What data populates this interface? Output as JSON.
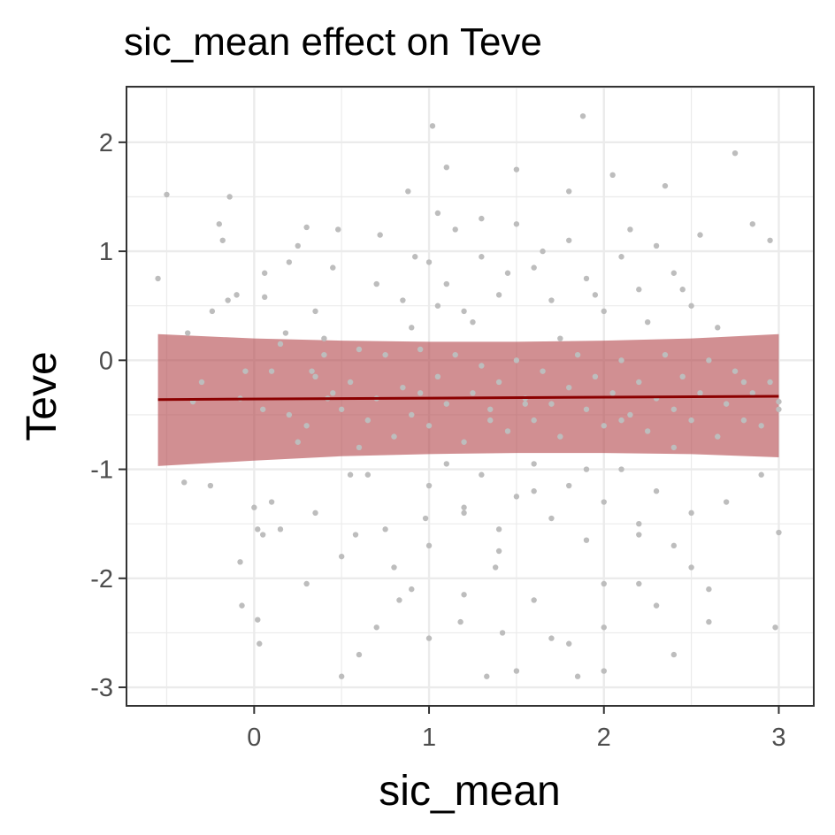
{
  "chart_data": {
    "type": "scatter",
    "title": "sic_mean effect on Teve",
    "xlabel": "sic_mean",
    "ylabel": "Teve",
    "xlim": [
      -0.73,
      3.2
    ],
    "ylim": [
      -3.17,
      2.51
    ],
    "x_ticks": [
      0,
      1,
      2,
      3
    ],
    "x_tick_labels": [
      "0",
      "1",
      "2",
      "3"
    ],
    "y_ticks": [
      -3,
      -2,
      -1,
      0,
      1,
      2
    ],
    "y_tick_labels": [
      "-3",
      "-2",
      "-1",
      "0",
      "1",
      "2"
    ],
    "grid": true,
    "colors": {
      "points": "#bdbdbd",
      "line": "#8b0000",
      "ribbon": "#b3454a",
      "grid": "#ebebeb",
      "panel_border": "#333333"
    },
    "series": [
      {
        "type": "line",
        "x": [
          -0.55,
          3.0
        ],
        "y": [
          -0.36,
          -0.33
        ]
      },
      {
        "type": "ribbon",
        "x": [
          -0.55,
          0.0,
          0.5,
          1.0,
          1.5,
          2.0,
          2.5,
          3.0
        ],
        "y_low": [
          -0.97,
          -0.92,
          -0.88,
          -0.86,
          -0.85,
          -0.85,
          -0.86,
          -0.89
        ],
        "y_high": [
          0.24,
          0.2,
          0.18,
          0.17,
          0.17,
          0.18,
          0.2,
          0.24
        ]
      },
      {
        "type": "scatter",
        "points": [
          [
            -0.55,
            0.75
          ],
          [
            -0.5,
            1.52
          ],
          [
            -0.4,
            -1.12
          ],
          [
            -0.38,
            0.25
          ],
          [
            -0.35,
            -0.38
          ],
          [
            -0.3,
            -0.2
          ],
          [
            -0.25,
            -1.15
          ],
          [
            -0.24,
            0.45
          ],
          [
            -0.2,
            1.25
          ],
          [
            -0.18,
            1.1
          ],
          [
            -0.15,
            0.55
          ],
          [
            -0.14,
            1.5
          ],
          [
            -0.1,
            0.6
          ],
          [
            -0.08,
            -0.35
          ],
          [
            -0.05,
            -0.1
          ],
          [
            -0.08,
            -1.85
          ],
          [
            -0.07,
            -2.25
          ],
          [
            0.0,
            -1.35
          ],
          [
            0.02,
            -1.55
          ],
          [
            0.05,
            -1.6
          ],
          [
            0.03,
            -2.6
          ],
          [
            0.02,
            -2.38
          ],
          [
            0.06,
            0.8
          ],
          [
            0.06,
            0.58
          ],
          [
            0.1,
            -1.3
          ],
          [
            0.15,
            -1.55
          ],
          [
            0.18,
            0.25
          ],
          [
            0.2,
            0.9
          ],
          [
            0.25,
            1.05
          ],
          [
            0.3,
            1.22
          ],
          [
            0.33,
            -0.1
          ],
          [
            0.35,
            0.45
          ],
          [
            0.4,
            0.2
          ],
          [
            0.42,
            -0.35
          ],
          [
            0.45,
            0.85
          ],
          [
            0.48,
            1.2
          ],
          [
            0.5,
            -1.8
          ],
          [
            0.55,
            -1.05
          ],
          [
            0.58,
            -1.6
          ],
          [
            0.6,
            -0.8
          ],
          [
            0.65,
            -1.05
          ],
          [
            0.7,
            0.7
          ],
          [
            0.72,
            1.15
          ],
          [
            0.75,
            -1.55
          ],
          [
            0.8,
            -1.9
          ],
          [
            0.83,
            -2.2
          ],
          [
            0.85,
            0.55
          ],
          [
            0.88,
            1.55
          ],
          [
            0.9,
            0.3
          ],
          [
            0.92,
            0.95
          ],
          [
            0.95,
            -0.3
          ],
          [
            0.98,
            -1.45
          ],
          [
            1.0,
            -1.7
          ],
          [
            1.02,
            2.15
          ],
          [
            1.05,
            0.5
          ],
          [
            1.1,
            1.77
          ],
          [
            1.15,
            1.2
          ],
          [
            1.18,
            -2.4
          ],
          [
            1.2,
            -1.4
          ],
          [
            1.25,
            0.35
          ],
          [
            1.3,
            1.3
          ],
          [
            1.33,
            -2.9
          ],
          [
            1.35,
            -0.55
          ],
          [
            1.38,
            -1.9
          ],
          [
            1.42,
            -2.5
          ],
          [
            1.45,
            0.8
          ],
          [
            1.5,
            1.75
          ],
          [
            1.55,
            -0.4
          ],
          [
            1.6,
            -1.2
          ],
          [
            1.65,
            1.0
          ],
          [
            1.7,
            -2.55
          ],
          [
            1.75,
            0.2
          ],
          [
            1.8,
            1.55
          ],
          [
            1.85,
            -2.9
          ],
          [
            1.88,
            2.24
          ],
          [
            1.9,
            -1.0
          ],
          [
            1.95,
            0.6
          ],
          [
            2.0,
            -2.05
          ],
          [
            2.05,
            1.7
          ],
          [
            2.1,
            -0.55
          ],
          [
            2.15,
            1.2
          ],
          [
            2.2,
            -1.6
          ],
          [
            2.25,
            0.35
          ],
          [
            2.3,
            -2.25
          ],
          [
            2.35,
            1.6
          ],
          [
            2.4,
            -0.8
          ],
          [
            2.45,
            0.65
          ],
          [
            2.5,
            -1.9
          ],
          [
            2.55,
            1.15
          ],
          [
            2.6,
            -2.4
          ],
          [
            2.65,
            0.3
          ],
          [
            2.7,
            -1.3
          ],
          [
            2.75,
            1.9
          ],
          [
            2.8,
            -0.2
          ],
          [
            2.85,
            1.25
          ],
          [
            2.9,
            -1.05
          ],
          [
            2.95,
            1.1
          ],
          [
            3.0,
            -1.58
          ],
          [
            3.0,
            -0.45
          ],
          [
            2.98,
            -2.45
          ],
          [
            0.2,
            -0.5
          ],
          [
            0.25,
            -0.75
          ],
          [
            0.3,
            -0.6
          ],
          [
            0.35,
            -0.15
          ],
          [
            0.4,
            0.05
          ],
          [
            0.45,
            -0.3
          ],
          [
            0.5,
            -0.45
          ],
          [
            0.55,
            -0.2
          ],
          [
            0.6,
            0.1
          ],
          [
            0.65,
            -0.55
          ],
          [
            0.7,
            -0.35
          ],
          [
            0.75,
            0.05
          ],
          [
            0.8,
            -0.7
          ],
          [
            0.85,
            -0.25
          ],
          [
            0.9,
            -0.5
          ],
          [
            0.95,
            0.1
          ],
          [
            1.0,
            -0.6
          ],
          [
            1.05,
            -0.15
          ],
          [
            1.1,
            -0.4
          ],
          [
            1.15,
            0.05
          ],
          [
            1.2,
            -0.75
          ],
          [
            1.25,
            -0.3
          ],
          [
            1.3,
            -0.05
          ],
          [
            1.35,
            -0.45
          ],
          [
            1.4,
            -0.2
          ],
          [
            1.45,
            -0.65
          ],
          [
            1.5,
            0.0
          ],
          [
            1.55,
            -0.35
          ],
          [
            1.6,
            -0.55
          ],
          [
            1.65,
            -0.1
          ],
          [
            1.7,
            -0.4
          ],
          [
            1.75,
            -0.7
          ],
          [
            1.8,
            -0.25
          ],
          [
            1.85,
            0.05
          ],
          [
            1.9,
            -0.45
          ],
          [
            1.95,
            -0.15
          ],
          [
            2.0,
            -0.6
          ],
          [
            2.05,
            -0.3
          ],
          [
            2.1,
            0.0
          ],
          [
            2.15,
            -0.5
          ],
          [
            2.2,
            -0.2
          ],
          [
            2.25,
            -0.65
          ],
          [
            2.3,
            -0.35
          ],
          [
            2.35,
            0.05
          ],
          [
            2.4,
            -0.45
          ],
          [
            2.45,
            -0.15
          ],
          [
            2.5,
            -0.55
          ],
          [
            2.55,
            -0.3
          ],
          [
            2.6,
            0.0
          ],
          [
            2.65,
            -0.7
          ],
          [
            2.7,
            -0.4
          ],
          [
            2.75,
            -0.1
          ],
          [
            2.8,
            -0.55
          ],
          [
            2.85,
            -0.3
          ],
          [
            2.9,
            -0.6
          ],
          [
            2.95,
            -0.2
          ],
          [
            3.0,
            -0.38
          ],
          [
            0.1,
            -0.1
          ],
          [
            0.15,
            0.15
          ],
          [
            0.05,
            -0.45
          ],
          [
            1.0,
            0.9
          ],
          [
            1.05,
            1.35
          ],
          [
            1.1,
            0.7
          ],
          [
            1.2,
            0.45
          ],
          [
            1.3,
            0.95
          ],
          [
            1.4,
            0.6
          ],
          [
            1.5,
            1.25
          ],
          [
            1.6,
            0.85
          ],
          [
            1.7,
            0.55
          ],
          [
            1.8,
            1.1
          ],
          [
            1.9,
            0.75
          ],
          [
            2.0,
            0.45
          ],
          [
            2.1,
            0.95
          ],
          [
            2.2,
            0.65
          ],
          [
            2.3,
            1.05
          ],
          [
            2.4,
            0.8
          ],
          [
            2.5,
            0.5
          ],
          [
            1.0,
            -1.15
          ],
          [
            1.1,
            -0.95
          ],
          [
            1.2,
            -1.35
          ],
          [
            1.3,
            -1.05
          ],
          [
            1.4,
            -1.55
          ],
          [
            1.5,
            -1.25
          ],
          [
            1.6,
            -0.95
          ],
          [
            1.7,
            -1.45
          ],
          [
            1.8,
            -1.15
          ],
          [
            1.9,
            -1.65
          ],
          [
            2.0,
            -1.3
          ],
          [
            2.1,
            -1.0
          ],
          [
            2.2,
            -1.5
          ],
          [
            2.3,
            -1.2
          ],
          [
            2.4,
            -1.7
          ],
          [
            2.5,
            -1.4
          ],
          [
            0.6,
            -2.7
          ],
          [
            0.7,
            -2.45
          ],
          [
            0.9,
            -2.1
          ],
          [
            1.2,
            -2.15
          ],
          [
            1.4,
            -1.75
          ],
          [
            1.6,
            -2.2
          ],
          [
            1.8,
            -2.6
          ],
          [
            2.0,
            -2.85
          ],
          [
            2.2,
            -2.05
          ],
          [
            2.4,
            -2.7
          ],
          [
            2.6,
            -2.1
          ],
          [
            0.5,
            -2.9
          ],
          [
            1.0,
            -2.55
          ],
          [
            1.5,
            -2.85
          ],
          [
            2.0,
            -2.45
          ],
          [
            0.3,
            -2.05
          ],
          [
            0.35,
            -1.4
          ]
        ]
      }
    ]
  }
}
